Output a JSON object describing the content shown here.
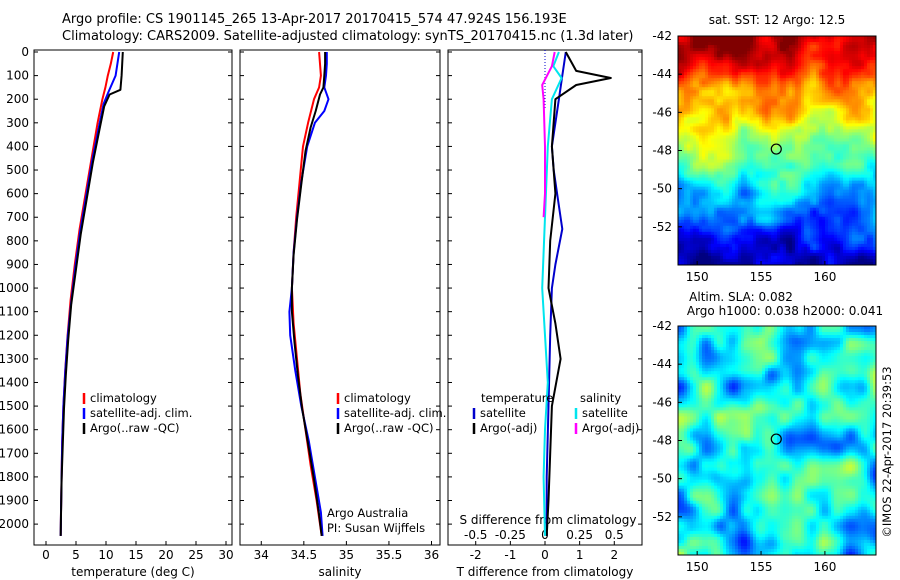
{
  "header": {
    "line1": "Argo profile: CS 1901145_265 13-Apr-2017 20170415_574 47.924S 156.193E",
    "line2": "Climatology: CARS2009. Satellite-adjusted climatology: synTS_20170415.nc (1.3d later)"
  },
  "colors": {
    "climatology": "#ff0000",
    "satellite": "#0000ff",
    "argo": "#000000",
    "temp_satellite": "#0000cc",
    "sal_satellite": "#00e5ee",
    "sal_argo": "#ff00ff"
  },
  "chart_data": [
    {
      "id": "temperature",
      "type": "line",
      "xlabel": "temperature (deg C)",
      "ylabel": "",
      "xlim": [
        -2,
        31
      ],
      "ylim": [
        2080,
        0
      ],
      "xticks": [
        0,
        5,
        10,
        15,
        20,
        25,
        30
      ],
      "yticks": [
        0,
        100,
        200,
        300,
        400,
        500,
        600,
        700,
        800,
        900,
        1000,
        1100,
        1200,
        1300,
        1400,
        1500,
        1600,
        1700,
        1800,
        1900,
        2000
      ],
      "legend": [
        "climatology",
        "satellite-adj. clim.",
        "Argo(..raw -QC)"
      ],
      "legend_position": "lower-middle",
      "series": [
        {
          "name": "climatology",
          "color_key": "climatology",
          "x": [
            11.2,
            10.8,
            10.3,
            9.9,
            9.4,
            8.6,
            7.6,
            6.6,
            5.6,
            4.8,
            4.1,
            3.6,
            3.2,
            2.9,
            2.7,
            2.6,
            2.5,
            2.45
          ],
          "y": [
            0,
            50,
            100,
            150,
            200,
            300,
            450,
            600,
            750,
            900,
            1050,
            1200,
            1350,
            1500,
            1650,
            1800,
            1950,
            2050
          ]
        },
        {
          "name": "satellite-adj. clim.",
          "color_key": "satellite",
          "x": [
            12.2,
            11.9,
            11.6,
            10.4,
            9.6,
            8.8,
            7.7,
            6.7,
            5.7,
            4.9,
            4.2,
            3.6,
            3.2,
            2.9,
            2.7,
            2.6,
            2.5,
            2.45
          ],
          "y": [
            0,
            50,
            100,
            170,
            220,
            320,
            460,
            610,
            760,
            910,
            1060,
            1210,
            1360,
            1500,
            1650,
            1800,
            1950,
            2050
          ]
        },
        {
          "name": "Argo(..raw -QC)",
          "color_key": "argo",
          "x": [
            12.8,
            12.7,
            12.6,
            12.4,
            10.6,
            9.7,
            8.9,
            7.8,
            6.8,
            5.8,
            5.0,
            4.2,
            3.7,
            3.3,
            3.0,
            2.8,
            2.6,
            2.5,
            2.45
          ],
          "y": [
            0,
            50,
            100,
            160,
            180,
            230,
            330,
            470,
            620,
            770,
            920,
            1070,
            1220,
            1370,
            1510,
            1660,
            1810,
            1960,
            2050
          ]
        }
      ]
    },
    {
      "id": "salinity",
      "type": "line",
      "xlabel": "salinity",
      "ylabel": "",
      "xlim": [
        33.75,
        36.1
      ],
      "ylim": [
        2080,
        0
      ],
      "xticks": [
        34,
        34.5,
        35,
        35.5,
        36
      ],
      "legend": [
        "climatology",
        "satellite-adj. clim.",
        "Argo(..raw -QC)"
      ],
      "legend_position": "lower-right",
      "annotations": [
        "Argo Australia",
        "PI: Susan Wijffels"
      ],
      "series": [
        {
          "name": "climatology",
          "color_key": "climatology",
          "x": [
            34.68,
            34.69,
            34.7,
            34.68,
            34.62,
            34.55,
            34.49,
            34.45,
            34.41,
            34.38,
            34.36,
            34.38,
            34.42,
            34.46,
            34.52,
            34.58,
            34.65,
            34.69,
            34.71
          ],
          "y": [
            0,
            50,
            100,
            150,
            200,
            300,
            400,
            550,
            700,
            850,
            1000,
            1150,
            1300,
            1450,
            1600,
            1750,
            1900,
            2000,
            2050
          ]
        },
        {
          "name": "satellite-adj. clim.",
          "color_key": "satellite",
          "x": [
            34.77,
            34.77,
            34.76,
            34.74,
            34.79,
            34.74,
            34.63,
            34.54,
            34.47,
            34.42,
            34.38,
            34.36,
            34.33,
            34.34,
            34.4,
            34.47,
            34.56,
            34.63,
            34.7,
            34.72
          ],
          "y": [
            0,
            50,
            100,
            150,
            200,
            250,
            300,
            400,
            550,
            700,
            850,
            1000,
            1100,
            1200,
            1350,
            1500,
            1650,
            1800,
            1950,
            2050
          ]
        },
        {
          "name": "Argo(..raw -QC)",
          "color_key": "argo",
          "x": [
            34.75,
            34.75,
            34.74,
            34.73,
            34.69,
            34.64,
            34.58,
            34.52,
            34.47,
            34.42,
            34.38,
            34.36,
            34.36,
            34.39,
            34.43,
            34.48,
            34.55,
            34.62,
            34.68,
            34.71
          ],
          "y": [
            0,
            50,
            100,
            150,
            180,
            250,
            320,
            420,
            560,
            710,
            860,
            1000,
            1100,
            1230,
            1370,
            1510,
            1660,
            1810,
            1960,
            2050
          ]
        }
      ]
    },
    {
      "id": "difference",
      "type": "line",
      "xlabel": "T difference from climatology",
      "xlabel_top": "S difference from climatology",
      "xlim": [
        -2.8,
        2.8
      ],
      "xticks": [
        -2,
        -1,
        0,
        1,
        2
      ],
      "xlim_sal": [
        -0.7,
        0.7
      ],
      "xticks_sal": [
        -0.5,
        -0.25,
        0,
        0.25,
        0.5
      ],
      "xticklabels_sal": [
        "-0.5",
        "-0.25",
        "0",
        "0.25",
        "0.5"
      ],
      "ylim": [
        2080,
        0
      ],
      "legend_titles": [
        "temperature",
        "salinity"
      ],
      "legend": [
        "satellite",
        "Argo(-adj)",
        "satellite",
        "Argo(-adj)"
      ],
      "legend_position": "lower-middle",
      "series": [
        {
          "name": "temperature satellite",
          "color_key": "temp_satellite",
          "axis": "T",
          "x": [
            0.6,
            0.5,
            0.4,
            0.3,
            0.2,
            0.25,
            0.35,
            0.5,
            0.3,
            0.2,
            0.15,
            0.1,
            0.05,
            0.05
          ],
          "y": [
            0,
            100,
            200,
            300,
            400,
            500,
            600,
            750,
            900,
            1000,
            1200,
            1500,
            1800,
            2050
          ]
        },
        {
          "name": "temperature Argo(-adj)",
          "color_key": "argo",
          "axis": "T",
          "x": [
            0.6,
            0.9,
            1.9,
            0.9,
            0.3,
            0.2,
            0.3,
            0.15,
            0.1,
            0.3,
            0.45,
            0.35,
            0.2,
            0.15,
            0.1,
            0.05
          ],
          "y": [
            0,
            80,
            110,
            140,
            200,
            400,
            600,
            800,
            1000,
            1150,
            1300,
            1380,
            1500,
            1700,
            1900,
            2050
          ]
        },
        {
          "name": "salinity satellite",
          "color_key": "sal_satellite",
          "axis": "S",
          "x": [
            0.1,
            0.06,
            0.12,
            0.05,
            0.02,
            0.0,
            -0.02,
            0.0,
            0.02,
            0.0,
            -0.01,
            0.0
          ],
          "y": [
            0,
            60,
            110,
            200,
            400,
            700,
            1000,
            1200,
            1400,
            1600,
            1800,
            2050
          ]
        },
        {
          "name": "salinity Argo(-adj)",
          "color_key": "sal_argo",
          "axis": "S",
          "x": [
            0.07,
            0.05,
            -0.02,
            -0.01,
            0.0,
            0.0,
            -0.01
          ],
          "y": [
            0,
            60,
            140,
            200,
            400,
            600,
            700
          ]
        }
      ]
    },
    {
      "id": "sst_map",
      "type": "heatmap",
      "title": "sat. SST: 12 Argo: 12.5",
      "xlim": [
        148.5,
        164
      ],
      "ylim": [
        -54,
        -42
      ],
      "xticks": [
        150,
        155,
        160
      ],
      "yticks": [
        -42,
        -44,
        -46,
        -48,
        -50,
        -52
      ],
      "marker": {
        "lon": 156.193,
        "lat": -47.924
      }
    },
    {
      "id": "sla_map",
      "type": "heatmap",
      "title": "Altim. SLA: 0.082",
      "subtitle": "Argo h1000: 0.038 h2000: 0.041",
      "xlim": [
        148.5,
        164
      ],
      "ylim": [
        -54,
        -42
      ],
      "xticks": [
        150,
        155,
        160
      ],
      "yticks": [
        -42,
        -44,
        -46,
        -48,
        -50,
        -52
      ],
      "marker": {
        "lon": 156.193,
        "lat": -47.924
      }
    }
  ],
  "credit": "©IMOS 22-Apr-2017 20:39:53"
}
